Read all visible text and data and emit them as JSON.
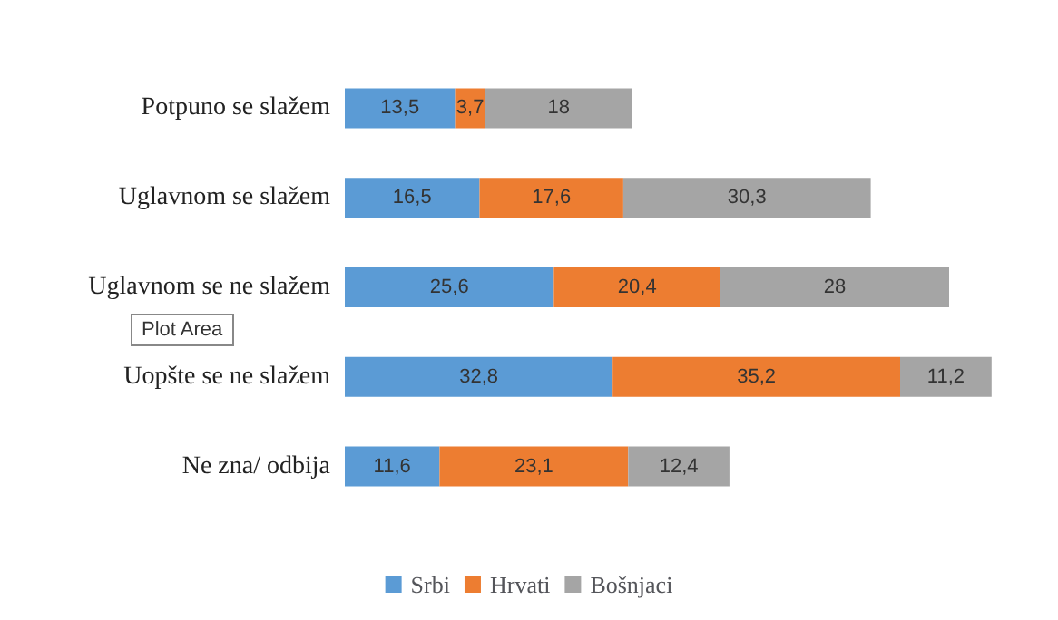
{
  "chart_data": {
    "type": "bar",
    "orientation": "horizontal",
    "stacked": true,
    "legend": "bottom",
    "categories": [
      "Potpuno se slažem",
      "Uglavnom se slažem",
      "Uglavnom se ne slažem",
      "Uopšte se ne slažem",
      "Ne zna/ odbija"
    ],
    "series": [
      {
        "name": "Srbi",
        "color": "#5b9bd5",
        "values": [
          13.5,
          16.5,
          25.6,
          32.8,
          11.6
        ],
        "value_labels": [
          "13,5",
          "16,5",
          "25,6",
          "32,8",
          "11,6"
        ]
      },
      {
        "name": "Hrvati",
        "color": "#ed7d31",
        "values": [
          3.7,
          17.6,
          20.4,
          35.2,
          23.1
        ],
        "value_labels": [
          "3,7",
          "17,6",
          "20,4",
          "35,2",
          "23,1"
        ]
      },
      {
        "name": "Bošnjaci",
        "color": "#a5a5a5",
        "values": [
          18,
          30.3,
          28,
          11.2,
          12.4
        ],
        "value_labels": [
          "18",
          "30,3",
          "28",
          "11,2",
          "12,4"
        ]
      }
    ],
    "annotations": [
      "Plot Area"
    ]
  }
}
